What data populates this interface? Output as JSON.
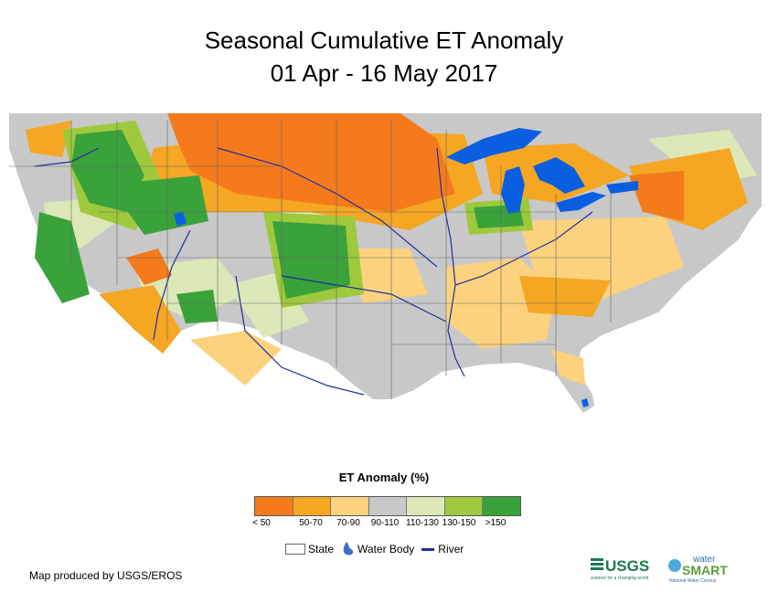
{
  "title": {
    "line1": "Seasonal Cumulative ET Anomaly",
    "line2": "01 Apr - 16 May 2017"
  },
  "legend": {
    "title": "ET Anomaly (%)",
    "classes": [
      {
        "label": "< 50",
        "color": "#f57a1c"
      },
      {
        "label": "50-70",
        "color": "#f5a623"
      },
      {
        "label": "70-90",
        "color": "#fcd27e"
      },
      {
        "label": "90-110",
        "color": "#c8c8c8"
      },
      {
        "label": "110-130",
        "color": "#dde8b8"
      },
      {
        "label": "130-150",
        "color": "#9fc93c"
      },
      {
        "label": ">150",
        "color": "#3aa23a"
      }
    ],
    "features": {
      "state": "State",
      "water_body": "Water Body",
      "river": "River"
    }
  },
  "credit": "Map produced by USGS/EROS",
  "logos": {
    "usgs": "USGS",
    "usgs_tagline": "science for a changing world",
    "watersmart_1": "water",
    "watersmart_2": "SMART",
    "watersmart_sub": "National Water Census"
  },
  "colors": {
    "water": "#0a5fe0",
    "river": "#1f2f9e",
    "state_line": "#666666",
    "usgs_green": "#1b7a4e"
  }
}
